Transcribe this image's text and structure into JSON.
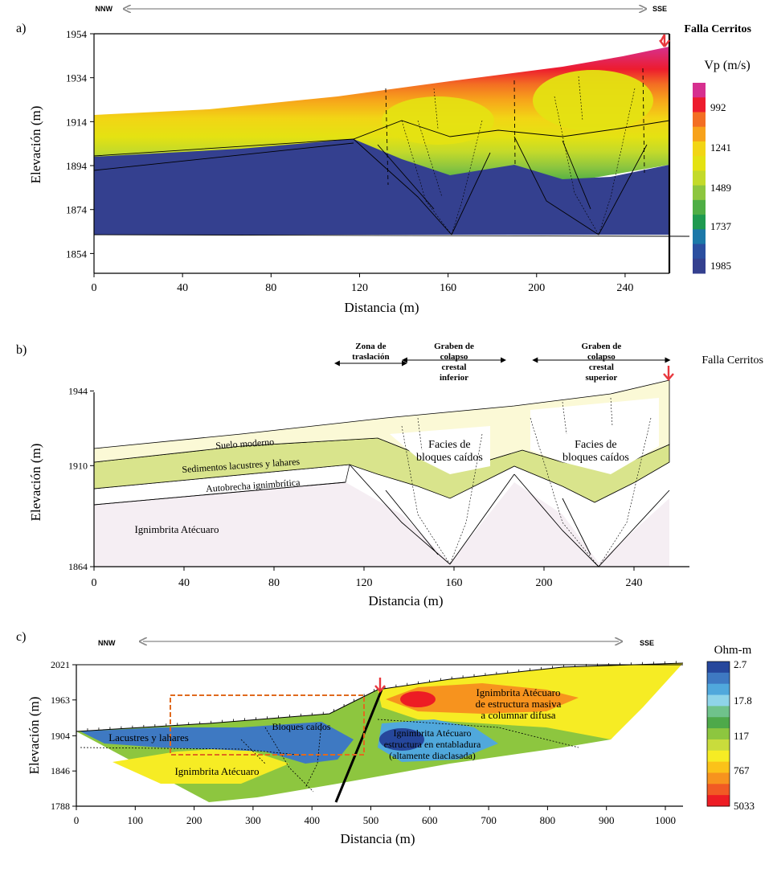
{
  "figure": {
    "panel_a_label": "a)",
    "panel_b_label": "b)",
    "panel_c_label": "c)"
  },
  "chart_data": [
    {
      "type": "heatmap",
      "panel": "a",
      "direction_left": "NNW",
      "direction_right": "SSE",
      "xlabel": "Distancia (m)",
      "ylabel": "Elevación (m)",
      "xlim": [
        0,
        260
      ],
      "ylim": [
        1845,
        1954
      ],
      "x_ticks": [
        0,
        40,
        80,
        120,
        160,
        200,
        240
      ],
      "y_ticks": [
        1954,
        1934,
        1914,
        1894,
        1874,
        1854
      ],
      "annotation": "Falla Cerritos",
      "fault_x": 258,
      "colorbar": {
        "title": "Vp (m/s)",
        "labels": [
          "992",
          "1241",
          "1489",
          "1737",
          "1985"
        ],
        "colors": [
          "#d6308f",
          "#ed1c2e",
          "#f36e23",
          "#f7a21b",
          "#f2d515",
          "#e4e212",
          "#c3da2a",
          "#8dc63f",
          "#4fae45",
          "#1f9a50",
          "#1c78a8",
          "#2b4fa0",
          "#34408f"
        ]
      },
      "surface_profile": {
        "x": [
          0,
          20,
          40,
          60,
          80,
          100,
          120,
          140,
          160,
          180,
          200,
          220,
          240,
          258
        ],
        "y": [
          1917,
          1918,
          1919,
          1920,
          1922,
          1924,
          1926,
          1928,
          1931,
          1934,
          1937,
          1941,
          1945,
          1950
        ]
      },
      "model_base": {
        "x": [
          0,
          258
        ],
        "y": [
          1863,
          1863
        ]
      }
    },
    {
      "type": "table",
      "panel": "b",
      "xlabel": "Distancia (m)",
      "ylabel": "Elevación (m)",
      "xlim": [
        0,
        260
      ],
      "ylim": [
        1864,
        1950
      ],
      "x_ticks": [
        0,
        40,
        80,
        120,
        160,
        200,
        240
      ],
      "y_ticks": [
        1944,
        1910,
        1864
      ],
      "annotation": "Falla Cerritos",
      "zones": [
        {
          "label_lines": [
            "Zona de",
            "traslación"
          ],
          "x_range": [
            108,
            138
          ]
        },
        {
          "label_lines": [
            "Graben de",
            "colapso",
            "crestal",
            "inferior"
          ],
          "x_range": [
            138,
            182
          ]
        },
        {
          "label_lines": [
            "Graben de",
            "colapso",
            "crestal",
            "superior"
          ],
          "x_range": [
            196,
            255
          ]
        }
      ],
      "units": [
        {
          "name": "Suelo moderno",
          "color": "#fbf9d6"
        },
        {
          "name": "Sedimentos lacustres y lahares",
          "color": "#d9e48c"
        },
        {
          "name": "Autobrecha ignimbrítica",
          "color": "#ffffff"
        },
        {
          "name": "Ignimbrita Atécuaro",
          "color": "#f5eef3"
        }
      ],
      "facies_labels": [
        {
          "lines": [
            "Facies de",
            "bloques caídos"
          ],
          "x": 158
        },
        {
          "lines": [
            "Facies de",
            "bloques caídos"
          ],
          "x": 223
        }
      ]
    },
    {
      "type": "heatmap",
      "panel": "c",
      "direction_left": "NNW",
      "direction_right": "SSE",
      "xlabel": "Distancia (m)",
      "ylabel": "Elevación (m)",
      "xlim": [
        0,
        1030
      ],
      "ylim": [
        1788,
        2021
      ],
      "x_ticks": [
        0,
        100,
        200,
        300,
        400,
        500,
        600,
        700,
        800,
        900,
        1000
      ],
      "y_ticks": [
        2021,
        1963,
        1904,
        1846,
        1788
      ],
      "colorbar": {
        "title": "Ohm-m",
        "labels": [
          "2.7",
          "17.8",
          "117",
          "767",
          "5033"
        ],
        "colors": [
          "#26479c",
          "#3e79c2",
          "#50a8dc",
          "#8fd4e9",
          "#6fc28b",
          "#4ea94a",
          "#8dc63f",
          "#c9dc3c",
          "#f6ec24",
          "#fbc219",
          "#f7931e",
          "#f15a24",
          "#ed1c24"
        ]
      },
      "annotations": [
        {
          "lines": [
            "Lacustres y lahares"
          ]
        },
        {
          "lines": [
            "Bloques caídos"
          ]
        },
        {
          "lines": [
            "Ignimbrita Atécuaro"
          ]
        },
        {
          "lines": [
            "Ignimbrita Atécuaro",
            "de estructura masiva",
            "a columnar difusa"
          ]
        },
        {
          "lines": [
            "Ignimbrita Atécuaro",
            "estructura en entabladura",
            "(altamente diaclasada)"
          ]
        }
      ],
      "fault_x_at_surface": 515,
      "highlight_box": {
        "x_range": [
          160,
          485
        ],
        "y_range": [
          1864,
          1974
        ]
      }
    }
  ]
}
